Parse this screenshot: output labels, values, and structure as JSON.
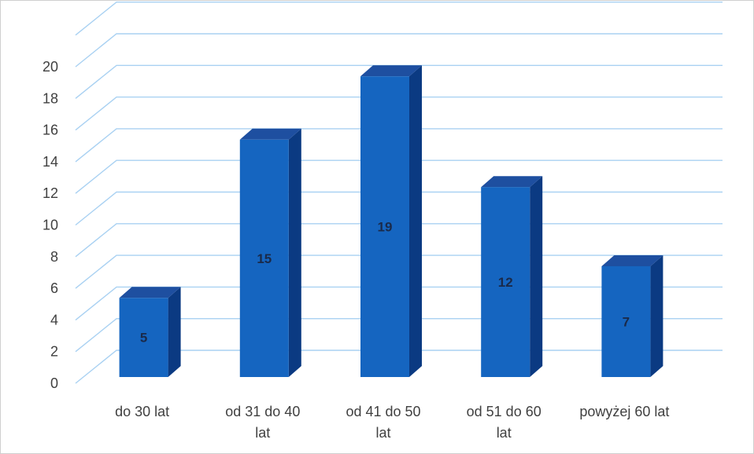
{
  "chart_data": {
    "type": "bar",
    "categories": [
      [
        "do 30 lat"
      ],
      [
        "od 31 do 40",
        "lat"
      ],
      [
        "od 41 do 50",
        "lat"
      ],
      [
        "od 51 do 60",
        "lat"
      ],
      [
        "powyżej 60 lat"
      ]
    ],
    "values": [
      5,
      15,
      19,
      12,
      7
    ],
    "data_labels": [
      "5",
      "15",
      "19",
      "12",
      "7"
    ],
    "yticks": [
      0,
      2,
      4,
      6,
      8,
      10,
      12,
      14,
      16,
      18,
      20
    ],
    "ylim": [
      0,
      22
    ],
    "grid": true,
    "legend": "none",
    "style": "3d-column"
  },
  "colors": {
    "bar_front": "#1565c0",
    "bar_side": "#0b3a82",
    "bar_top": "#1e4fa0",
    "gridline": "#a9d1f2",
    "tick_text": "#404040",
    "data_label_text": "#1a2a4a",
    "frame": "#cfcfcf"
  }
}
